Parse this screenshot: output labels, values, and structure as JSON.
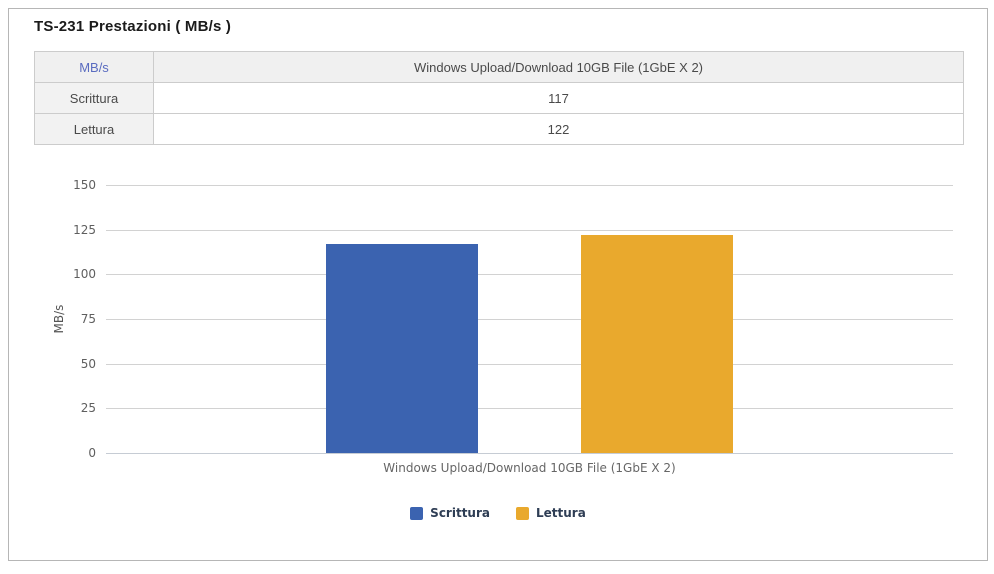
{
  "page": {
    "title": "TS-231 Prestazioni ( MB/s )"
  },
  "table": {
    "header": {
      "metric": "MB/s",
      "test": "Windows Upload/Download 10GB File (1GbE X 2)"
    },
    "rows": [
      {
        "label": "Scrittura",
        "value": "117"
      },
      {
        "label": "Lettura",
        "value": "122"
      }
    ]
  },
  "chart_data": {
    "type": "bar",
    "title": "",
    "categories": [
      "Windows Upload/Download 10GB File (1GbE X 2)"
    ],
    "series": [
      {
        "name": "Scrittura",
        "values": [
          117
        ],
        "color": "#3b63b0"
      },
      {
        "name": "Lettura",
        "values": [
          122
        ],
        "color": "#e9a92d"
      }
    ],
    "xlabel": "",
    "ylabel": "MB/s",
    "ylim": [
      0,
      150
    ],
    "ytick_step": 25,
    "grid": true,
    "legend_position": "bottom"
  },
  "colors": {
    "grid": "#d2d2d2",
    "zero_axis": "#c6ccd4",
    "tick_label": "#5f5f5f",
    "frame_border": "#b6b6b6",
    "header_link": "#5a6cc0"
  }
}
